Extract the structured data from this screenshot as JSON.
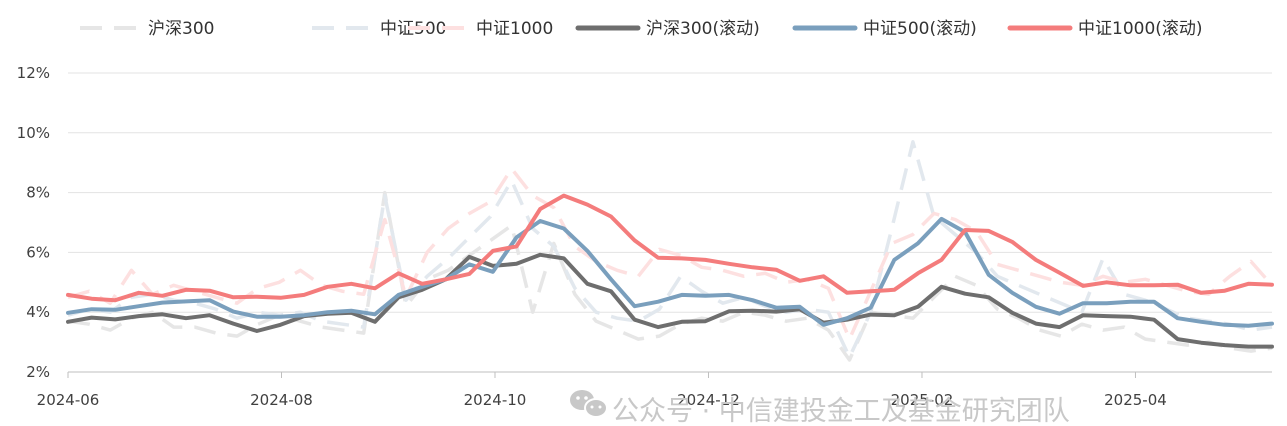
{
  "chart_data": {
    "type": "line",
    "title": "",
    "xlabel": "",
    "ylabel": "",
    "ylim": [
      0.02,
      0.12
    ],
    "y_ticks": [
      "2%",
      "4%",
      "6%",
      "8%",
      "10%",
      "12%"
    ],
    "x_ticks": [
      {
        "label": "2024-06",
        "t": 0
      },
      {
        "label": "2024-08",
        "t": 8.6
      },
      {
        "label": "2024-10",
        "t": 17.2
      },
      {
        "label": "2024-12",
        "t": 25.8
      },
      {
        "label": "2025-02",
        "t": 34.4
      },
      {
        "label": "2025-04",
        "t": 43.0
      }
    ],
    "x_range": [
      0,
      48.5
    ],
    "grid": "horizontal",
    "legend_position": "top",
    "series": [
      {
        "name": "沪深300",
        "color": "#e6e6e6",
        "style": "dashed",
        "values": [
          0.037,
          0.036,
          0.034,
          0.038,
          0.04,
          0.035,
          0.035,
          0.033,
          0.032,
          0.036,
          0.039,
          0.037,
          0.035,
          0.034,
          0.033,
          0.08,
          0.042,
          0.051,
          0.054,
          0.059,
          0.064,
          0.069,
          0.04,
          0.063,
          0.046,
          0.037,
          0.034,
          0.031,
          0.032,
          0.036,
          0.038,
          0.037,
          0.04,
          0.039,
          0.037,
          0.038,
          0.034,
          0.024,
          0.04,
          0.039,
          0.038,
          0.045,
          0.052,
          0.049,
          0.041,
          0.038,
          0.034,
          0.032,
          0.036,
          0.034,
          0.035,
          0.031,
          0.03,
          0.029,
          0.03,
          0.028,
          0.027,
          0.028
        ]
      },
      {
        "name": "中证500",
        "color": "#e2e8ee",
        "style": "dashed",
        "values": [
          0.039,
          0.041,
          0.04,
          0.045,
          0.046,
          0.044,
          0.043,
          0.041,
          0.038,
          0.04,
          0.039,
          0.04,
          0.037,
          0.036,
          0.035,
          0.079,
          0.044,
          0.052,
          0.058,
          0.065,
          0.072,
          0.084,
          0.068,
          0.062,
          0.048,
          0.04,
          0.038,
          0.037,
          0.041,
          0.052,
          0.047,
          0.043,
          0.045,
          0.042,
          0.04,
          0.041,
          0.04,
          0.025,
          0.04,
          0.068,
          0.097,
          0.072,
          0.066,
          0.06,
          0.052,
          0.049,
          0.046,
          0.043,
          0.04,
          0.058,
          0.046,
          0.044,
          0.041,
          0.038,
          0.037,
          0.036,
          0.034,
          0.035
        ]
      },
      {
        "name": "中证1000",
        "color": "#fde0e0",
        "style": "dashed",
        "values": [
          0.045,
          0.047,
          0.043,
          0.054,
          0.046,
          0.049,
          0.047,
          0.045,
          0.043,
          0.048,
          0.05,
          0.054,
          0.049,
          0.047,
          0.046,
          0.071,
          0.045,
          0.06,
          0.068,
          0.073,
          0.077,
          0.088,
          0.079,
          0.075,
          0.062,
          0.057,
          0.054,
          0.052,
          0.061,
          0.059,
          0.055,
          0.054,
          0.052,
          0.053,
          0.05,
          0.051,
          0.048,
          0.031,
          0.047,
          0.063,
          0.066,
          0.073,
          0.071,
          0.067,
          0.056,
          0.054,
          0.052,
          0.05,
          0.049,
          0.052,
          0.05,
          0.051,
          0.049,
          0.047,
          0.046,
          0.052,
          0.057,
          0.049
        ]
      },
      {
        "name": "沪深300(滚动)",
        "color": "#6e6e6e",
        "style": "solid",
        "values": [
          0.0368,
          0.0382,
          0.0376,
          0.0387,
          0.0393,
          0.038,
          0.039,
          0.0362,
          0.0337,
          0.0358,
          0.0387,
          0.0395,
          0.0398,
          0.0368,
          0.045,
          0.0475,
          0.051,
          0.0585,
          0.0555,
          0.0562,
          0.0592,
          0.058,
          0.0495,
          0.047,
          0.0375,
          0.035,
          0.0368,
          0.037,
          0.0403,
          0.0405,
          0.0402,
          0.041,
          0.0365,
          0.0375,
          0.0392,
          0.039,
          0.0418,
          0.0485,
          0.0462,
          0.045,
          0.0398,
          0.0362,
          0.035,
          0.039,
          0.0387,
          0.0385,
          0.0375,
          0.031,
          0.0298,
          0.029,
          0.0285,
          0.0285
        ]
      },
      {
        "name": "中证500(滚动)",
        "color": "#7a9fbd",
        "style": "solid",
        "values": [
          0.0398,
          0.041,
          0.0408,
          0.042,
          0.0432,
          0.0436,
          0.044,
          0.0402,
          0.0385,
          0.0385,
          0.039,
          0.04,
          0.0405,
          0.0393,
          0.0458,
          0.0485,
          0.051,
          0.056,
          0.0535,
          0.065,
          0.0705,
          0.068,
          0.0605,
          0.051,
          0.042,
          0.0435,
          0.0458,
          0.0455,
          0.0458,
          0.044,
          0.0415,
          0.0418,
          0.0358,
          0.038,
          0.0415,
          0.0575,
          0.063,
          0.0712,
          0.0668,
          0.0525,
          0.0465,
          0.0418,
          0.0395,
          0.043,
          0.043,
          0.0435,
          0.0435,
          0.038,
          0.0368,
          0.0358,
          0.0355,
          0.0362
        ]
      },
      {
        "name": "中证1000(滚动)",
        "color": "#f47c7c",
        "style": "solid",
        "values": [
          0.0458,
          0.0445,
          0.044,
          0.0465,
          0.0455,
          0.0475,
          0.0472,
          0.045,
          0.0452,
          0.0448,
          0.0458,
          0.0485,
          0.0495,
          0.048,
          0.053,
          0.0495,
          0.051,
          0.0528,
          0.0605,
          0.062,
          0.0745,
          0.079,
          0.076,
          0.072,
          0.064,
          0.0582,
          0.058,
          0.0575,
          0.0562,
          0.055,
          0.0542,
          0.0505,
          0.052,
          0.0465,
          0.047,
          0.0475,
          0.053,
          0.0575,
          0.0675,
          0.0672,
          0.0635,
          0.0575,
          0.0532,
          0.0488,
          0.05,
          0.049,
          0.049,
          0.0492,
          0.0465,
          0.0472,
          0.0495,
          0.0492
        ]
      }
    ]
  },
  "watermark": {
    "text": "公众号 · 中信建投金工及基金研究团队",
    "icon": "wechat-icon"
  }
}
